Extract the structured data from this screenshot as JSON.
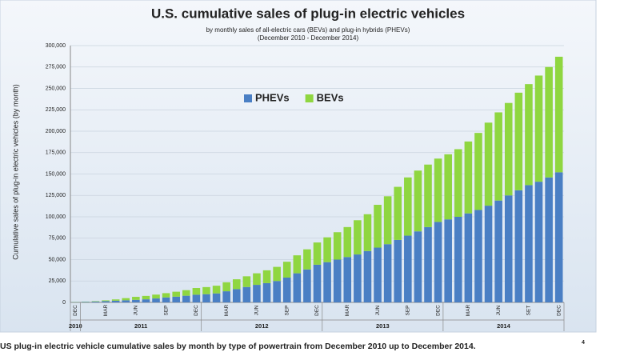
{
  "chart_data": {
    "type": "stacked_bar",
    "title": "U.S. cumulative sales of plug-in electric vehicles",
    "subtitle": [
      "by monthly sales of all-electric cars (BEVs) and plug-in hybrids (PHEVs)",
      "(December 2010 - December 2014)"
    ],
    "y_label": "Cumulative sales of plug-in electric vehicles (by month)",
    "categories": [
      "DEC",
      null,
      null,
      "MAR",
      null,
      null,
      "JUN",
      null,
      null,
      "SEP",
      null,
      null,
      "DEC",
      null,
      null,
      "MAR",
      null,
      null,
      "JUN",
      null,
      null,
      "SEP",
      null,
      null,
      "DEC",
      null,
      null,
      "MAR",
      null,
      null,
      "JUN",
      null,
      null,
      "SEP",
      null,
      null,
      "DEC",
      null,
      null,
      "MAR",
      null,
      null,
      "JUN",
      null,
      null,
      "SET",
      null,
      null,
      "DEC"
    ],
    "year_labels": [
      "2010",
      "2011",
      "2012",
      "2013",
      "2014"
    ],
    "series": [
      {
        "name": "PHEVs",
        "color": "#4a7fc4",
        "values": [
          300,
          600,
          900,
          1500,
          2000,
          2500,
          3000,
          3600,
          4600,
          5800,
          6700,
          7800,
          9000,
          9600,
          10500,
          13000,
          15500,
          18000,
          20500,
          22500,
          25000,
          29000,
          34000,
          38500,
          44000,
          47000,
          50000,
          53000,
          56000,
          60000,
          64000,
          68000,
          73000,
          78000,
          83000,
          88000,
          94000,
          97000,
          100000,
          104000,
          108000,
          113000,
          119000,
          125000,
          131000,
          137000,
          141000,
          146000,
          152000
        ]
      },
      {
        "name": "BEVs",
        "color": "#8fd640",
        "values": [
          200,
          300,
          500,
          900,
          1500,
          2500,
          3500,
          4000,
          4500,
          5000,
          5800,
          6500,
          7800,
          8300,
          9000,
          10500,
          11500,
          12500,
          13500,
          15000,
          16500,
          18500,
          21000,
          23500,
          26000,
          29000,
          32000,
          35000,
          40000,
          43000,
          50000,
          56000,
          62000,
          68000,
          71000,
          73000,
          74000,
          76000,
          79000,
          84000,
          90000,
          97000,
          103000,
          108000,
          114000,
          118000,
          124000,
          129000,
          135000
        ]
      }
    ],
    "ylim": [
      0,
      300000
    ],
    "yticks": [
      0,
      {
        "value": 25000,
        "label": "25,000"
      },
      {
        "value": 50000,
        "label": "50,000"
      },
      {
        "value": 75000,
        "label": "75,000"
      },
      {
        "value": 100000,
        "label": "100,000"
      },
      {
        "value": 125000,
        "label": "125,000"
      },
      {
        "value": 150000,
        "label": "150,000"
      },
      {
        "value": 175000,
        "label": "175,000"
      },
      {
        "value": 200000,
        "label": "200,000"
      },
      {
        "value": 225000,
        "label": "225,000"
      },
      {
        "value": 250000,
        "label": "250,000"
      },
      {
        "value": 275000,
        "label": "275,000"
      },
      {
        "value": 300000,
        "label": "300,000"
      }
    ],
    "grid": true,
    "legend": "top"
  },
  "caption": {
    "text": "US plug-in electric vehicle cumulative sales by month by type of powertrain from December 2010 up to December 2014.",
    "footnote": "4"
  }
}
